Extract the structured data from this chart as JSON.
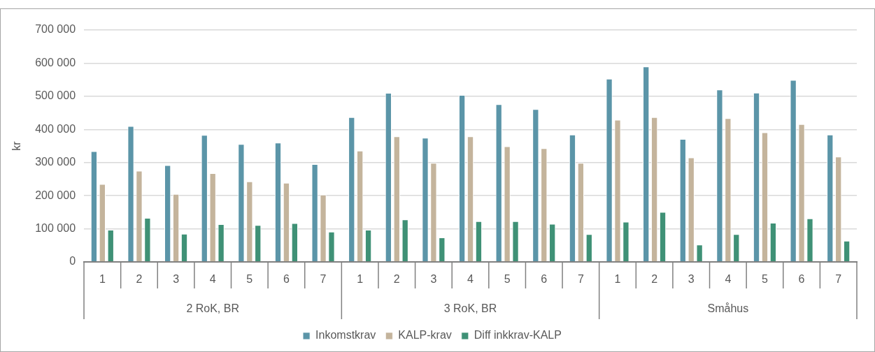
{
  "chart_data": {
    "type": "bar",
    "ylabel": "kr",
    "categories": [
      "1",
      "2",
      "3",
      "4",
      "5",
      "6",
      "7",
      "1",
      "2",
      "3",
      "4",
      "5",
      "6",
      "7",
      "1",
      "2",
      "3",
      "4",
      "5",
      "6",
      "7"
    ],
    "annotations": [
      "2 RoK, BR",
      "3 RoK, BR",
      "Småhus"
    ],
    "series": [
      {
        "name": "Inkomstkrav",
        "color": "#5b95a8",
        "values": [
          334000,
          410000,
          292000,
          383000,
          356000,
          360000,
          295000,
          437000,
          510000,
          375000,
          504000,
          476000,
          461000,
          384000,
          553000,
          590000,
          371000,
          520000,
          511000,
          549000,
          384000
        ]
      },
      {
        "name": "KALP-krav",
        "color": "#c4b49c",
        "values": [
          235000,
          275000,
          205000,
          268000,
          243000,
          239000,
          203000,
          336000,
          379000,
          299000,
          379000,
          349000,
          343000,
          299000,
          429000,
          437000,
          315000,
          434000,
          391000,
          416000,
          318000
        ]
      },
      {
        "name": "Diff inkkrav-KALP",
        "color": "#3f9176",
        "values": [
          97000,
          133000,
          85000,
          114000,
          111000,
          117000,
          91000,
          97000,
          128000,
          74000,
          123000,
          123000,
          115000,
          84000,
          121000,
          151000,
          52000,
          84000,
          118000,
          131000,
          64000
        ]
      }
    ],
    "ylim": [
      0,
      700000
    ],
    "yticks": [
      0,
      {
        "value": 100000,
        "label": "100 000"
      },
      {
        "value": 200000,
        "label": "200 000"
      },
      {
        "value": 300000,
        "label": "300 000"
      },
      {
        "value": 400000,
        "label": "400 000"
      },
      {
        "value": 500000,
        "label": "500 000"
      },
      {
        "value": 600000,
        "label": "600 000"
      },
      {
        "value": 700000,
        "label": "700 000"
      }
    ],
    "grid": "y",
    "legend": "bottom"
  }
}
